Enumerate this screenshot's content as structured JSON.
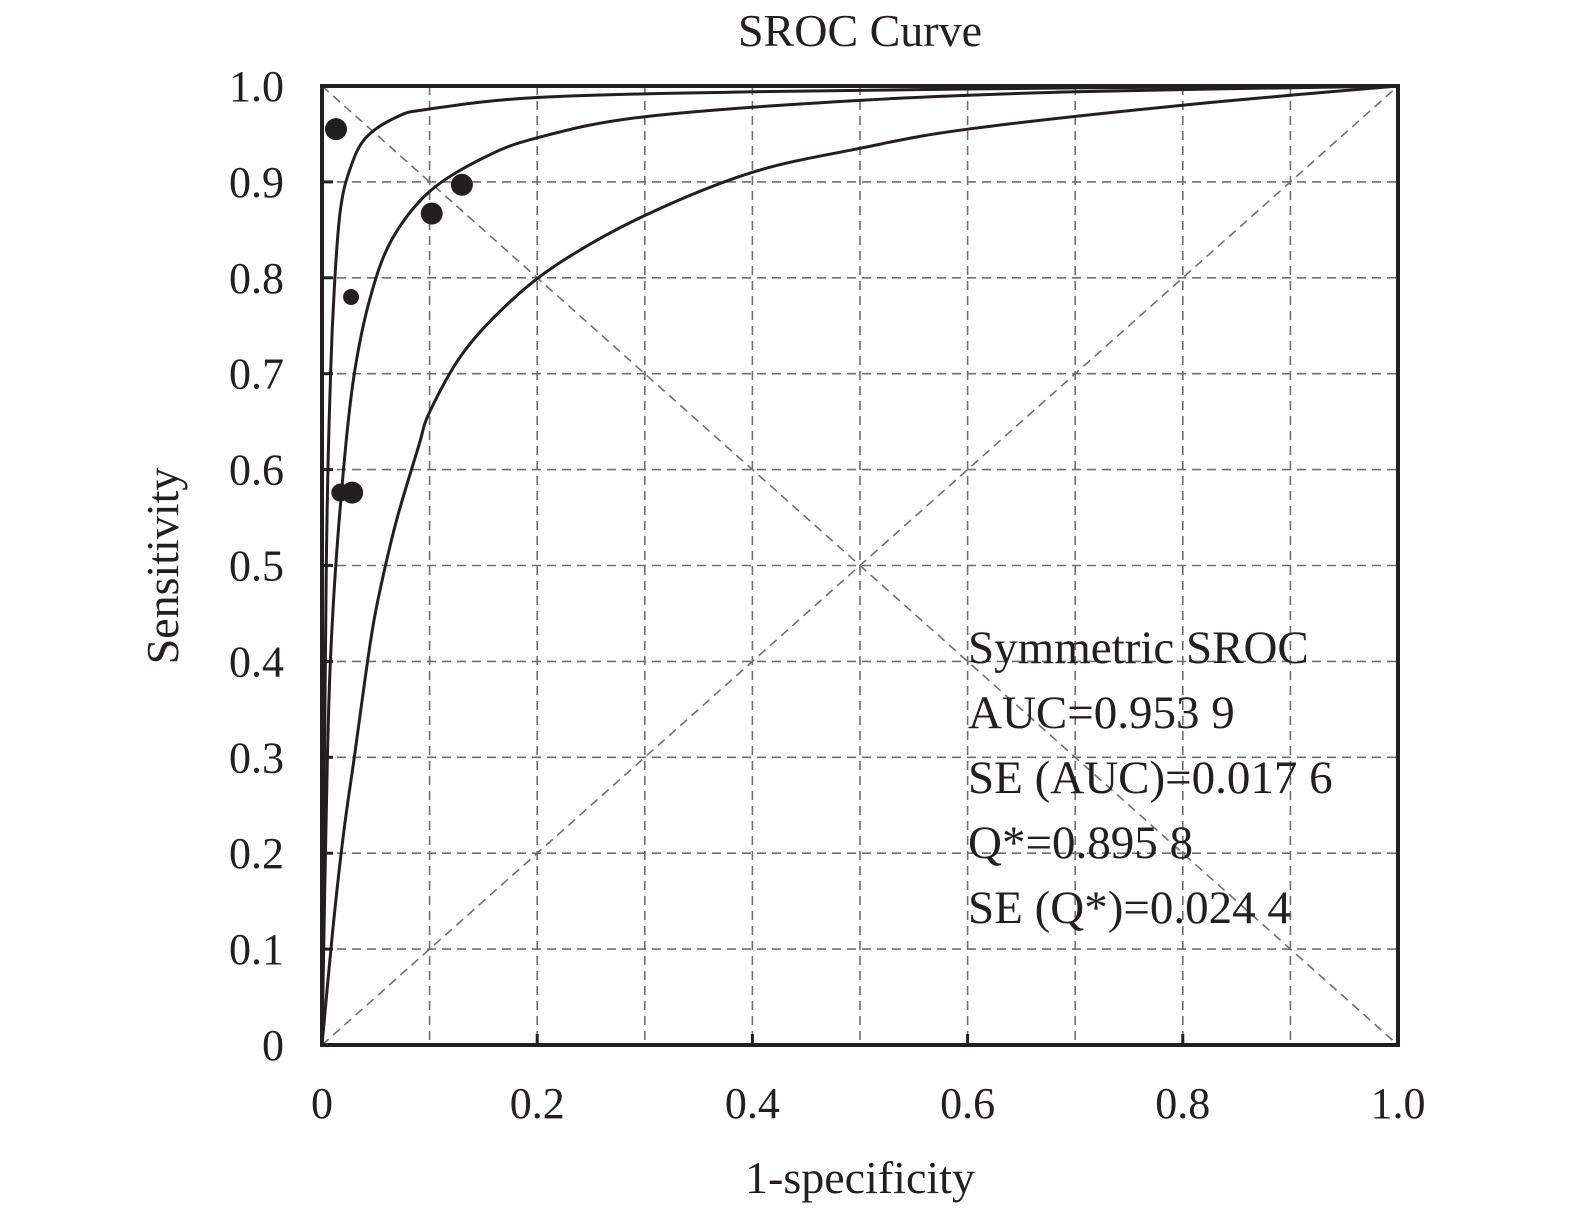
{
  "chart_data": {
    "type": "scatter",
    "title": "SROC Curve",
    "xlabel": "1-specificity",
    "ylabel": "Sensitivity",
    "xlim": [
      0,
      1.0
    ],
    "ylim": [
      0,
      1.0
    ],
    "grid": true,
    "x_ticks": [
      "0",
      "0.2",
      "0.4",
      "0.6",
      "0.8",
      "1.0"
    ],
    "y_ticks": [
      "0",
      "0.1",
      "0.2",
      "0.3",
      "0.4",
      "0.5",
      "0.6",
      "0.7",
      "0.8",
      "0.9",
      "1.0"
    ],
    "points": [
      {
        "x": 0.013,
        "y": 0.955,
        "size": "large"
      },
      {
        "x": 0.027,
        "y": 0.78,
        "size": "small"
      },
      {
        "x": 0.102,
        "y": 0.867,
        "size": "large"
      },
      {
        "x": 0.13,
        "y": 0.897,
        "size": "large"
      },
      {
        "x": 0.017,
        "y": 0.576,
        "size": "medium"
      },
      {
        "x": 0.028,
        "y": 0.576,
        "size": "large"
      }
    ],
    "curves": [
      {
        "role": "upper",
        "points": [
          [
            0,
            0
          ],
          [
            0.004,
            0.5
          ],
          [
            0.008,
            0.7
          ],
          [
            0.012,
            0.8
          ],
          [
            0.017,
            0.87
          ],
          [
            0.025,
            0.91
          ],
          [
            0.04,
            0.945
          ],
          [
            0.07,
            0.968
          ],
          [
            0.1,
            0.976
          ],
          [
            0.2,
            0.988
          ],
          [
            0.4,
            0.994
          ],
          [
            0.7,
            0.998
          ],
          [
            1.0,
            1.0
          ]
        ]
      },
      {
        "role": "sroc",
        "points": [
          [
            0,
            0
          ],
          [
            0.005,
            0.3
          ],
          [
            0.01,
            0.45
          ],
          [
            0.02,
            0.6
          ],
          [
            0.03,
            0.7
          ],
          [
            0.045,
            0.78
          ],
          [
            0.065,
            0.84
          ],
          [
            0.1,
            0.89
          ],
          [
            0.15,
            0.925
          ],
          [
            0.2,
            0.946
          ],
          [
            0.3,
            0.968
          ],
          [
            0.5,
            0.985
          ],
          [
            0.7,
            0.994
          ],
          [
            1.0,
            1.0
          ]
        ]
      },
      {
        "role": "lower",
        "points": [
          [
            0,
            0
          ],
          [
            0.01,
            0.12
          ],
          [
            0.02,
            0.22
          ],
          [
            0.03,
            0.3
          ],
          [
            0.045,
            0.42
          ],
          [
            0.055,
            0.48
          ],
          [
            0.07,
            0.55
          ],
          [
            0.09,
            0.625
          ],
          [
            0.1,
            0.66
          ],
          [
            0.13,
            0.72
          ],
          [
            0.17,
            0.77
          ],
          [
            0.22,
            0.815
          ],
          [
            0.3,
            0.865
          ],
          [
            0.4,
            0.91
          ],
          [
            0.5,
            0.935
          ],
          [
            0.6,
            0.955
          ],
          [
            0.8,
            0.98
          ],
          [
            1.0,
            1.0
          ]
        ]
      }
    ],
    "reference_lines": [
      "diagonal",
      "anti-diagonal"
    ],
    "annotations": [
      "Symmetric SROC",
      "AUC=0.953 9",
      "SE (AUC)=0.017 6",
      "Q*=0.895 8",
      "SE (Q*)=0.024 4"
    ],
    "colors": {
      "ink": "#231f20",
      "grid": "#6d6e71"
    }
  }
}
